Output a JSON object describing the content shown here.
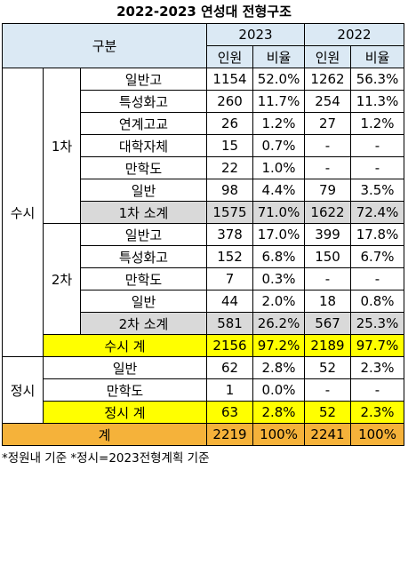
{
  "title": "2022-2023 연성대 전형구조",
  "header": {
    "category": "구분",
    "year1": "2023",
    "year2": "2022",
    "count": "인원",
    "ratio": "비율"
  },
  "susi": {
    "label": "수시",
    "round1": {
      "label": "1차",
      "rows": [
        {
          "name": "일반고",
          "c23": "1154",
          "r23": "52.0%",
          "c22": "1262",
          "r22": "56.3%"
        },
        {
          "name": "특성화고",
          "c23": "260",
          "r23": "11.7%",
          "c22": "254",
          "r22": "11.3%"
        },
        {
          "name": "연계고교",
          "c23": "26",
          "r23": "1.2%",
          "c22": "27",
          "r22": "1.2%"
        },
        {
          "name": "대학자체",
          "c23": "15",
          "r23": "0.7%",
          "c22": "-",
          "r22": "-"
        },
        {
          "name": "만학도",
          "c23": "22",
          "r23": "1.0%",
          "c22": "-",
          "r22": "-"
        },
        {
          "name": "일반",
          "c23": "98",
          "r23": "4.4%",
          "c22": "79",
          "r22": "3.5%"
        }
      ],
      "subtotal": {
        "name": "1차 소계",
        "c23": "1575",
        "r23": "71.0%",
        "c22": "1622",
        "r22": "72.4%"
      }
    },
    "round2": {
      "label": "2차",
      "rows": [
        {
          "name": "일반고",
          "c23": "378",
          "r23": "17.0%",
          "c22": "399",
          "r22": "17.8%"
        },
        {
          "name": "특성화고",
          "c23": "152",
          "r23": "6.8%",
          "c22": "150",
          "r22": "6.7%"
        },
        {
          "name": "만학도",
          "c23": "7",
          "r23": "0.3%",
          "c22": "-",
          "r22": "-"
        },
        {
          "name": "일반",
          "c23": "44",
          "r23": "2.0%",
          "c22": "18",
          "r22": "0.8%"
        }
      ],
      "subtotal": {
        "name": "2차 소계",
        "c23": "581",
        "r23": "26.2%",
        "c22": "567",
        "r22": "25.3%"
      }
    },
    "total": {
      "name": "수시 계",
      "c23": "2156",
      "r23": "97.2%",
      "c22": "2189",
      "r22": "97.7%"
    }
  },
  "jeongsi": {
    "label": "정시",
    "rows": [
      {
        "name": "일반",
        "c23": "62",
        "r23": "2.8%",
        "c22": "52",
        "r22": "2.3%"
      },
      {
        "name": "만학도",
        "c23": "1",
        "r23": "0.0%",
        "c22": "-",
        "r22": "-"
      }
    ],
    "total": {
      "name": "정시 계",
      "c23": "63",
      "r23": "2.8%",
      "c22": "52",
      "r22": "2.3%"
    }
  },
  "grand_total": {
    "name": "계",
    "c23": "2219",
    "r23": "100%",
    "c22": "2241",
    "r22": "100%"
  },
  "note": "*정원내 기준  *정시=2023전형계획 기준",
  "colors": {
    "header": "#dbe9f4",
    "subtotal": "#d9d9d9",
    "total": "#ffff00",
    "grand_total": "#f5b23a"
  }
}
